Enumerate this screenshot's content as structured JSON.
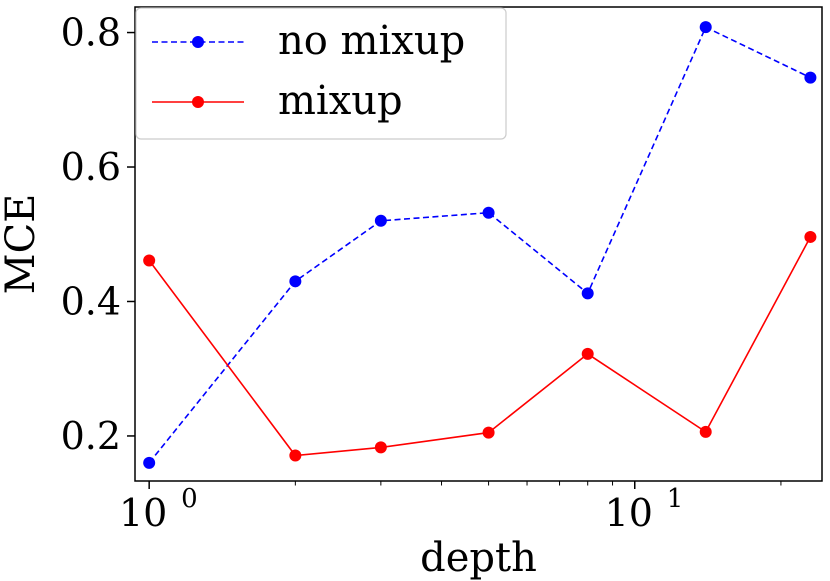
{
  "chart_data": {
    "type": "line",
    "xlabel": "depth",
    "ylabel": "MCE",
    "xscale": "log",
    "xlim": [
      0.935,
      24.3
    ],
    "ylim": [
      0.133,
      0.838
    ],
    "xticks": [
      {
        "value": 1,
        "base": "10",
        "exp": "0"
      },
      {
        "value": 10,
        "base": "10",
        "exp": "1"
      }
    ],
    "yticks": [
      {
        "value": 0.2,
        "label": "0.2"
      },
      {
        "value": 0.4,
        "label": "0.4"
      },
      {
        "value": 0.6,
        "label": "0.6"
      },
      {
        "value": 0.8,
        "label": "0.8"
      }
    ],
    "legend": "top-left",
    "grid": false,
    "series": [
      {
        "name": "no mixup",
        "color": "#0000ff",
        "style": "dashed",
        "x": [
          1,
          2,
          3,
          5,
          8,
          14,
          23
        ],
        "y": [
          0.16,
          0.43,
          0.52,
          0.532,
          0.412,
          0.808,
          0.733
        ]
      },
      {
        "name": "mixup",
        "color": "#ff0000",
        "style": "solid",
        "x": [
          1,
          2,
          3,
          5,
          8,
          14,
          23
        ],
        "y": [
          0.461,
          0.171,
          0.183,
          0.205,
          0.322,
          0.206,
          0.496
        ]
      }
    ]
  }
}
